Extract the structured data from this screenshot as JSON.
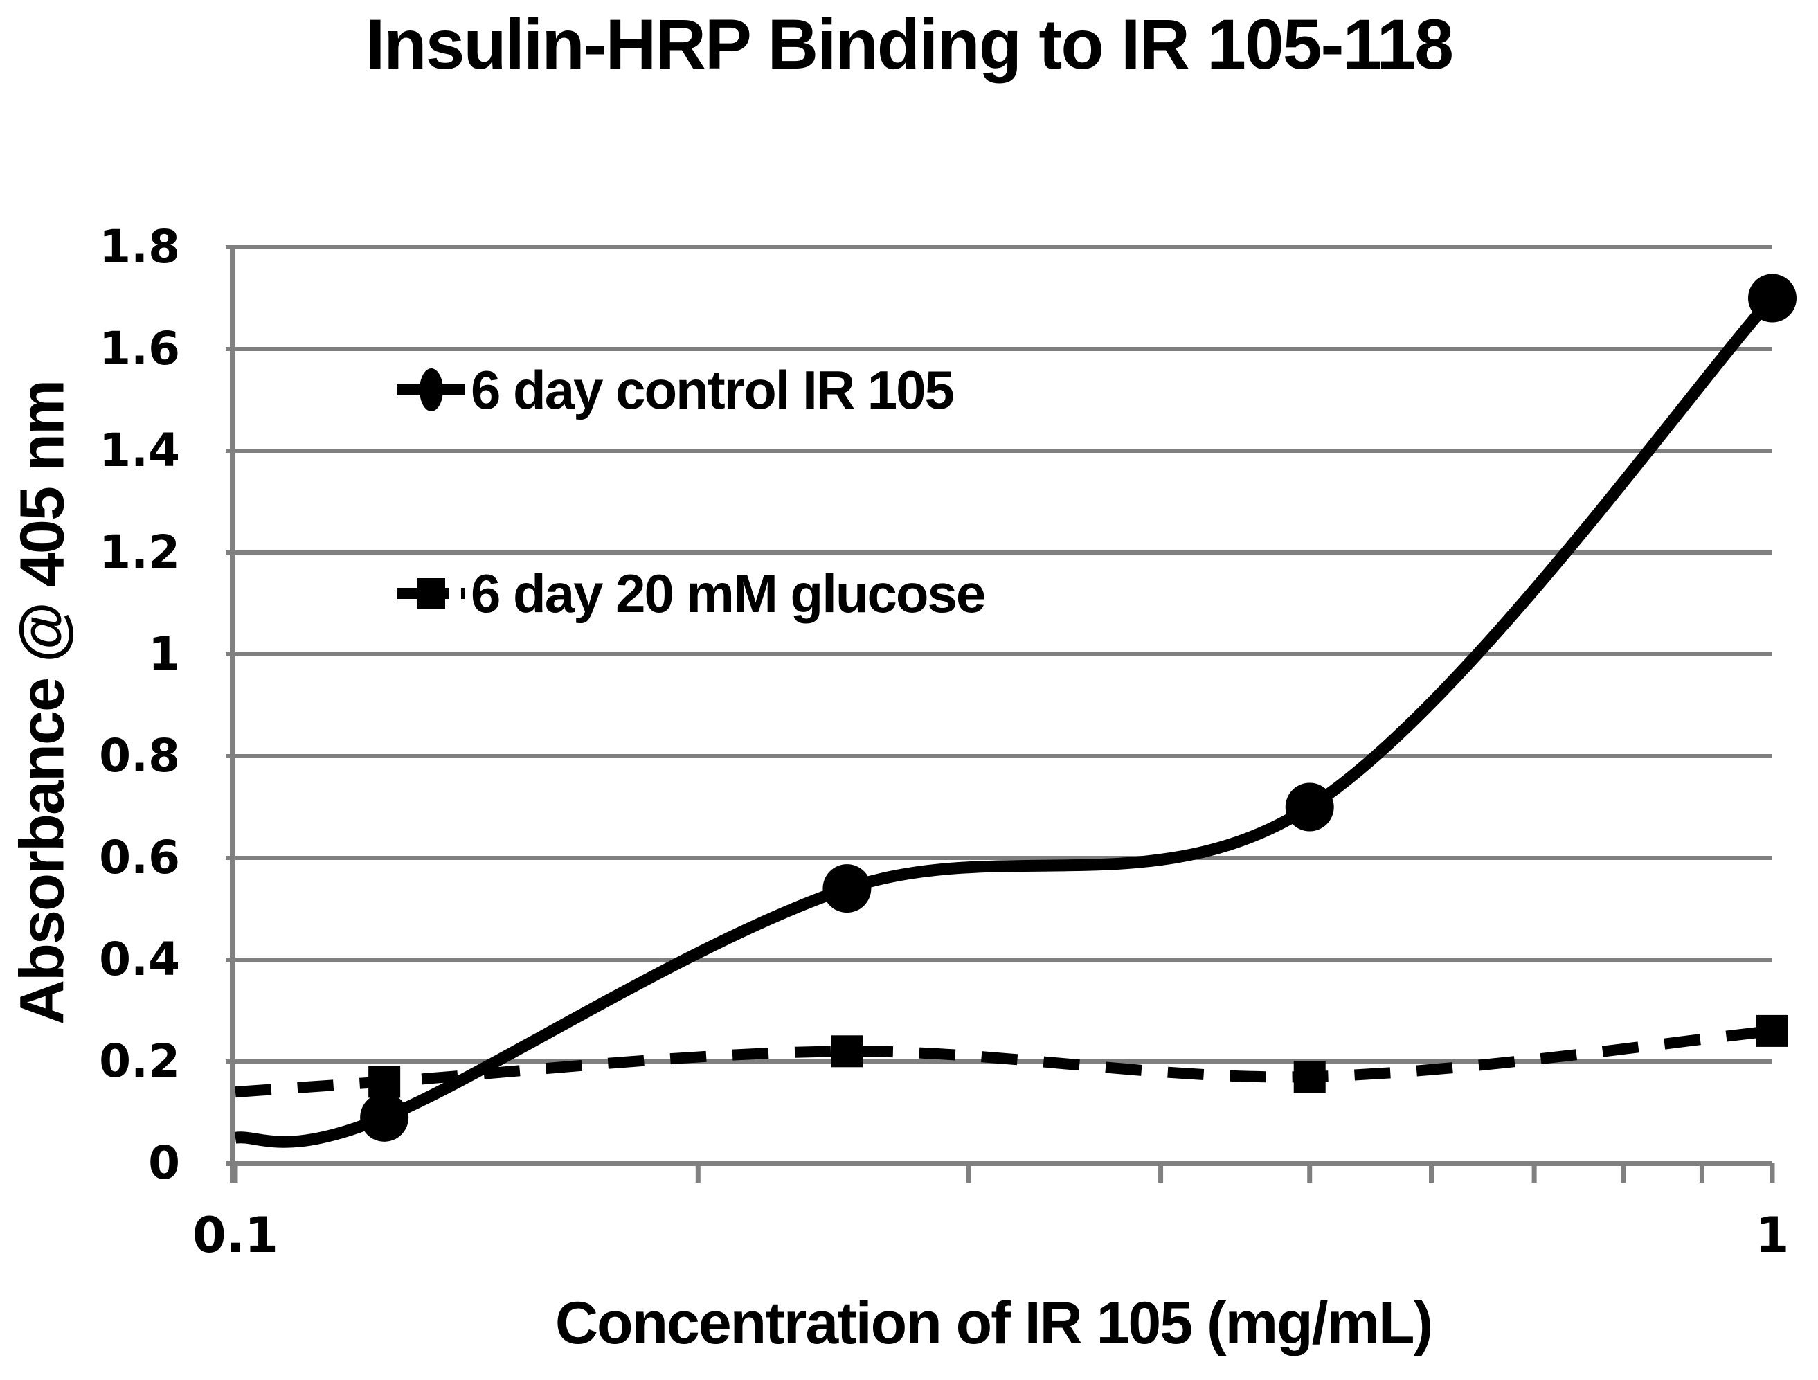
{
  "chart_data": {
    "type": "line",
    "title": "Insulin-HRP Binding to IR 105-118",
    "xlabel": "Concentration of IR 105 (mg/mL)",
    "ylabel": "Absorbance @ 405 nm",
    "x_scale": "log10",
    "xlim": [
      0.1,
      1
    ],
    "ylim": [
      0,
      1.8
    ],
    "grid": "horizontal",
    "y_ticks": [
      0,
      0.2,
      0.4,
      0.6,
      0.8,
      1,
      1.2,
      1.4,
      1.6,
      1.8
    ],
    "y_tick_labels": [
      "0",
      "0.2",
      "0.4",
      "0.6",
      "0.8",
      "1",
      "1.2",
      "1.4",
      "1.6",
      "1.8"
    ],
    "x_tick_labels": [
      {
        "value": 0.1,
        "label": "0.1"
      },
      {
        "value": 1,
        "label": "1"
      }
    ],
    "x_minor_ticks": [
      0.1,
      0.2,
      0.3,
      0.4,
      0.5,
      0.6,
      0.7,
      0.8,
      0.9,
      1
    ],
    "colors": {
      "series": "#000000",
      "gridline": "#808080",
      "axis": "#808080",
      "text": "#000000",
      "background": "#ffffff"
    },
    "note": "Both smoothed curves start at x=0.1 without a marker; markers appear only at the four measured concentrations.",
    "series": [
      {
        "name": "6 day control IR 105",
        "line_style": "solid",
        "marker": "circle",
        "x": [
          0.1,
          0.125,
          0.25,
          0.5,
          1.0
        ],
        "y": [
          0.05,
          0.09,
          0.54,
          0.7,
          1.7
        ],
        "marker_from_index": 1
      },
      {
        "name": "6 day 20 mM glucose",
        "line_style": "dashed",
        "marker": "square",
        "x": [
          0.1,
          0.125,
          0.25,
          0.5,
          1.0
        ],
        "y": [
          0.14,
          0.16,
          0.22,
          0.17,
          0.26
        ],
        "marker_from_index": 1
      }
    ],
    "legend": {
      "position": "inside-upper-left"
    }
  }
}
